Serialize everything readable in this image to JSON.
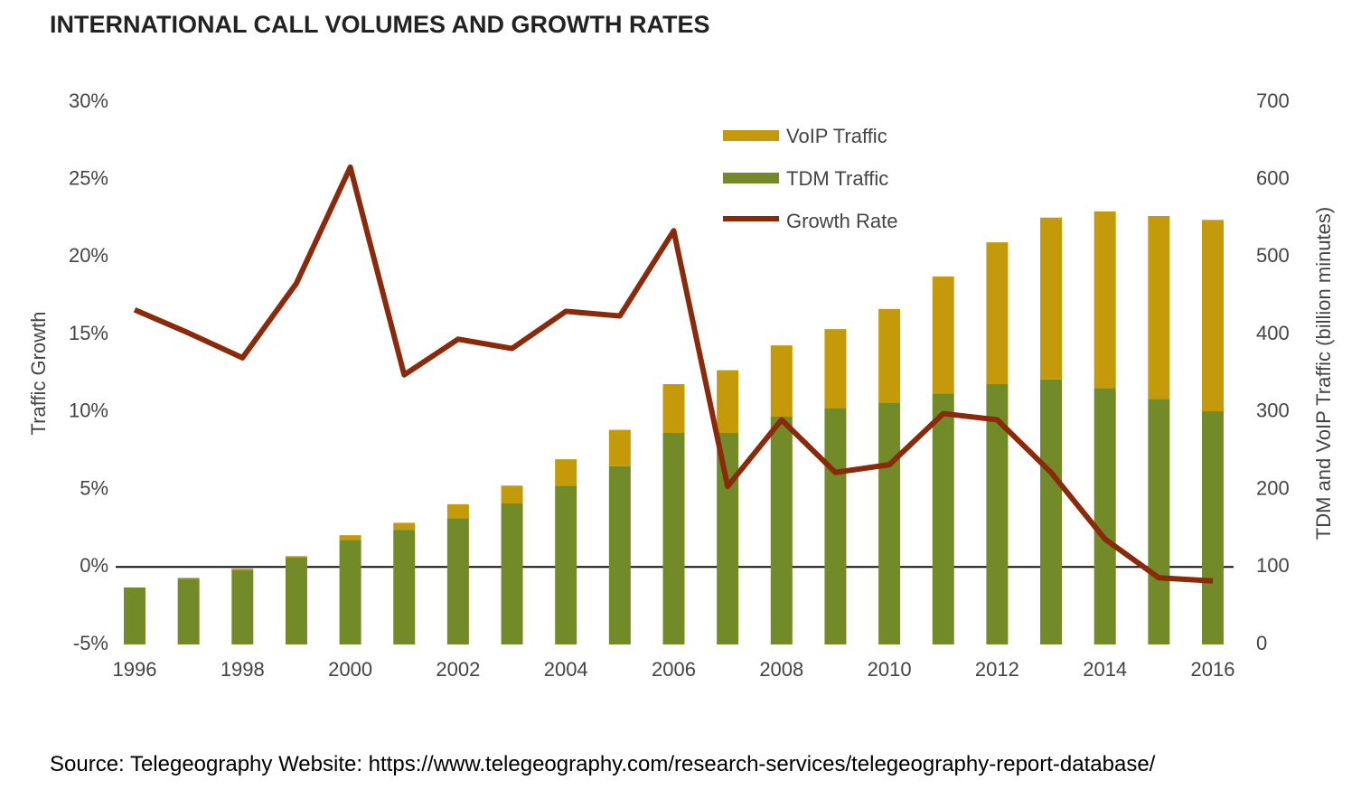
{
  "chart_data": {
    "type": "bar",
    "title": "INTERNATIONAL CALL VOLUMES AND GROWTH RATES",
    "source": "Source: Telegeography Website: https://www.telegeography.com/research-services/telegeography-report-database/",
    "y_label": "Traffic Growth",
    "y2_label": "TDM and VoIP Traffic (billion minutes)",
    "categories": [
      "1996",
      null,
      "1998",
      null,
      "2000",
      null,
      "2002",
      null,
      "2004",
      null,
      "2006",
      null,
      "2008",
      null,
      "2010",
      null,
      "2012",
      null,
      "2014",
      null,
      "2016"
    ],
    "series": [
      {
        "name": "VoIP Traffic",
        "type": "bar",
        "axis": "y2",
        "stack": true,
        "color": "#c49a0a",
        "values": [
          0,
          1,
          2,
          2,
          6,
          9,
          18,
          23,
          34,
          47,
          63,
          81,
          92,
          102,
          121,
          151,
          183,
          209,
          228,
          236,
          247
        ]
      },
      {
        "name": "TDM Traffic",
        "type": "bar",
        "axis": "y2",
        "stack": true,
        "color": "#738a28",
        "values": [
          73.5,
          85,
          96,
          112,
          135,
          148,
          163,
          182,
          205,
          230,
          273,
          273,
          294,
          305,
          312,
          324,
          336,
          342,
          331,
          317,
          301
        ]
      },
      {
        "name": "Growth Rate",
        "type": "line",
        "axis": "y",
        "color": "#8b2a0a",
        "values": [
          16.6,
          15.1,
          13.5,
          18.3,
          25.8,
          12.4,
          14.7,
          14.1,
          16.5,
          16.2,
          21.7,
          5.2,
          9.5,
          6.1,
          6.6,
          9.9,
          9.5,
          6.1,
          1.8,
          -0.7,
          -0.9
        ]
      }
    ],
    "ylim": [
      -5,
      30
    ],
    "yticks": [
      {
        "value": 30,
        "label": "30%"
      },
      {
        "value": 25,
        "label": "25%"
      },
      {
        "value": 20,
        "label": "20%"
      },
      {
        "value": 15,
        "label": "15%"
      },
      {
        "value": 10,
        "label": "10%"
      },
      {
        "value": 5,
        "label": "5%"
      },
      {
        "value": 0,
        "label": "0%"
      },
      {
        "value": -5,
        "label": "-5%"
      }
    ],
    "y2lim": [
      0,
      700
    ],
    "y2ticks": [
      700,
      600,
      500,
      400,
      300,
      200,
      100,
      0
    ],
    "zero_line": true,
    "grid": false
  }
}
